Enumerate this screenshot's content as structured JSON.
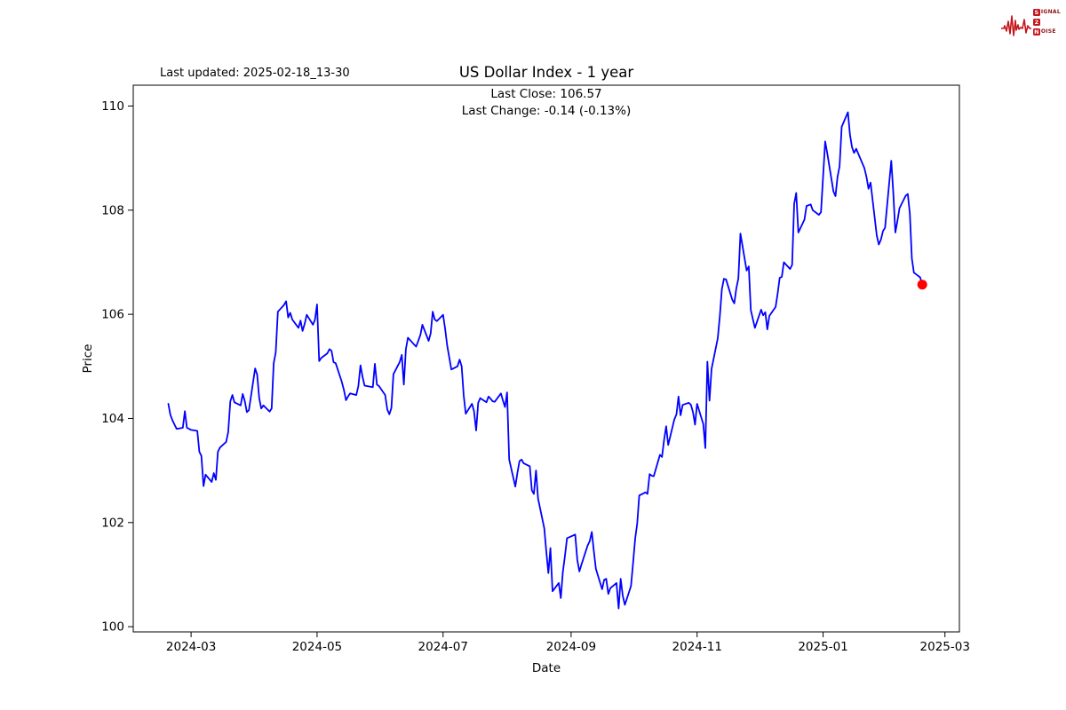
{
  "header": {
    "last_updated": "Last updated: 2025-02-18_13-30"
  },
  "logo": {
    "word1_initial": "S",
    "word1_rest": "IGNAL",
    "word2": "2",
    "word3_initial": "N",
    "word3_rest": "OISE",
    "accent_color": "#c4161c",
    "text_color": "#8c1216"
  },
  "chart_data": {
    "type": "line",
    "title": "US Dollar Index - 1 year",
    "xlabel": "Date",
    "ylabel": "Price",
    "annotations": [
      "Last Close: 106.57",
      "Last Change: -0.14 (-0.13%)"
    ],
    "last_close": 106.57,
    "last_change": -0.14,
    "last_change_pct": "-0.13%",
    "line_color": "#0000ff",
    "marker_color": "#ff0000",
    "axis_color": "#000000",
    "grid": false,
    "legend": "none",
    "ylim": [
      99.9,
      110.4
    ],
    "xlim": [
      "2024-02-02",
      "2025-03-08"
    ],
    "yticks": [
      100,
      102,
      104,
      106,
      108,
      110
    ],
    "xticks": [
      "2024-03",
      "2024-05",
      "2024-07",
      "2024-09",
      "2024-11",
      "2025-01",
      "2025-03"
    ],
    "series": [
      {
        "name": "US Dollar Index close",
        "points": [
          [
            "2024-02-19",
            104.28
          ],
          [
            "2024-02-20",
            104.07
          ],
          [
            "2024-02-21",
            103.96
          ],
          [
            "2024-02-22",
            103.88
          ],
          [
            "2024-02-23",
            103.8
          ],
          [
            "2024-02-26",
            103.82
          ],
          [
            "2024-02-27",
            104.14
          ],
          [
            "2024-02-28",
            103.82
          ],
          [
            "2024-02-29",
            103.8
          ],
          [
            "2024-03-01",
            103.78
          ],
          [
            "2024-03-04",
            103.76
          ],
          [
            "2024-03-05",
            103.36
          ],
          [
            "2024-03-06",
            103.28
          ],
          [
            "2024-03-07",
            102.7
          ],
          [
            "2024-03-08",
            102.92
          ],
          [
            "2024-03-11",
            102.78
          ],
          [
            "2024-03-12",
            102.95
          ],
          [
            "2024-03-13",
            102.82
          ],
          [
            "2024-03-14",
            103.36
          ],
          [
            "2024-03-15",
            103.44
          ],
          [
            "2024-03-18",
            103.55
          ],
          [
            "2024-03-19",
            103.74
          ],
          [
            "2024-03-20",
            104.33
          ],
          [
            "2024-03-21",
            104.45
          ],
          [
            "2024-03-22",
            104.31
          ],
          [
            "2024-03-25",
            104.25
          ],
          [
            "2024-03-26",
            104.47
          ],
          [
            "2024-03-27",
            104.33
          ],
          [
            "2024-03-28",
            104.12
          ],
          [
            "2024-03-29",
            104.16
          ],
          [
            "2024-04-01",
            104.96
          ],
          [
            "2024-04-02",
            104.84
          ],
          [
            "2024-04-03",
            104.39
          ],
          [
            "2024-04-04",
            104.19
          ],
          [
            "2024-04-05",
            104.25
          ],
          [
            "2024-04-08",
            104.13
          ],
          [
            "2024-04-09",
            104.19
          ],
          [
            "2024-04-10",
            105.06
          ],
          [
            "2024-04-11",
            105.27
          ],
          [
            "2024-04-12",
            106.05
          ],
          [
            "2024-04-15",
            106.18
          ],
          [
            "2024-04-16",
            106.25
          ],
          [
            "2024-04-17",
            105.94
          ],
          [
            "2024-04-18",
            106.03
          ],
          [
            "2024-04-19",
            105.9
          ],
          [
            "2024-04-22",
            105.74
          ],
          [
            "2024-04-23",
            105.88
          ],
          [
            "2024-04-24",
            105.68
          ],
          [
            "2024-04-25",
            105.82
          ],
          [
            "2024-04-26",
            105.99
          ],
          [
            "2024-04-29",
            105.8
          ],
          [
            "2024-04-30",
            105.9
          ],
          [
            "2024-05-01",
            106.19
          ],
          [
            "2024-05-02",
            105.1
          ],
          [
            "2024-05-03",
            105.16
          ],
          [
            "2024-05-06",
            105.25
          ],
          [
            "2024-05-07",
            105.33
          ],
          [
            "2024-05-08",
            105.3
          ],
          [
            "2024-05-09",
            105.08
          ],
          [
            "2024-05-10",
            105.06
          ],
          [
            "2024-05-13",
            104.7
          ],
          [
            "2024-05-14",
            104.55
          ],
          [
            "2024-05-15",
            104.35
          ],
          [
            "2024-05-16",
            104.42
          ],
          [
            "2024-05-17",
            104.48
          ],
          [
            "2024-05-20",
            104.45
          ],
          [
            "2024-05-21",
            104.62
          ],
          [
            "2024-05-22",
            105.02
          ],
          [
            "2024-05-23",
            104.8
          ],
          [
            "2024-05-24",
            104.63
          ],
          [
            "2024-05-28",
            104.6
          ],
          [
            "2024-05-29",
            105.05
          ],
          [
            "2024-05-30",
            104.65
          ],
          [
            "2024-05-31",
            104.62
          ],
          [
            "2024-06-03",
            104.45
          ],
          [
            "2024-06-04",
            104.17
          ],
          [
            "2024-06-05",
            104.08
          ],
          [
            "2024-06-06",
            104.2
          ],
          [
            "2024-06-07",
            104.85
          ],
          [
            "2024-06-10",
            105.08
          ],
          [
            "2024-06-11",
            105.22
          ],
          [
            "2024-06-12",
            104.65
          ],
          [
            "2024-06-13",
            105.33
          ],
          [
            "2024-06-14",
            105.55
          ],
          [
            "2024-06-17",
            105.42
          ],
          [
            "2024-06-18",
            105.38
          ],
          [
            "2024-06-20",
            105.6
          ],
          [
            "2024-06-21",
            105.8
          ],
          [
            "2024-06-24",
            105.49
          ],
          [
            "2024-06-25",
            105.63
          ],
          [
            "2024-06-26",
            106.05
          ],
          [
            "2024-06-27",
            105.9
          ],
          [
            "2024-06-28",
            105.87
          ],
          [
            "2024-07-01",
            105.99
          ],
          [
            "2024-07-02",
            105.72
          ],
          [
            "2024-07-03",
            105.4
          ],
          [
            "2024-07-05",
            104.94
          ],
          [
            "2024-07-08",
            105.0
          ],
          [
            "2024-07-09",
            105.13
          ],
          [
            "2024-07-10",
            105.0
          ],
          [
            "2024-07-11",
            104.44
          ],
          [
            "2024-07-12",
            104.09
          ],
          [
            "2024-07-15",
            104.28
          ],
          [
            "2024-07-16",
            104.14
          ],
          [
            "2024-07-17",
            103.77
          ],
          [
            "2024-07-18",
            104.3
          ],
          [
            "2024-07-19",
            104.39
          ],
          [
            "2024-07-22",
            104.31
          ],
          [
            "2024-07-23",
            104.42
          ],
          [
            "2024-07-24",
            104.38
          ],
          [
            "2024-07-25",
            104.33
          ],
          [
            "2024-07-26",
            104.32
          ],
          [
            "2024-07-29",
            104.48
          ],
          [
            "2024-07-30",
            104.34
          ],
          [
            "2024-07-31",
            104.22
          ],
          [
            "2024-08-01",
            104.5
          ],
          [
            "2024-08-02",
            103.21
          ],
          [
            "2024-08-05",
            102.69
          ],
          [
            "2024-08-06",
            102.96
          ],
          [
            "2024-08-07",
            103.18
          ],
          [
            "2024-08-08",
            103.21
          ],
          [
            "2024-08-09",
            103.14
          ],
          [
            "2024-08-12",
            103.08
          ],
          [
            "2024-08-13",
            102.62
          ],
          [
            "2024-08-14",
            102.55
          ],
          [
            "2024-08-15",
            103.0
          ],
          [
            "2024-08-16",
            102.46
          ],
          [
            "2024-08-19",
            101.89
          ],
          [
            "2024-08-20",
            101.44
          ],
          [
            "2024-08-21",
            101.03
          ],
          [
            "2024-08-22",
            101.51
          ],
          [
            "2024-08-23",
            100.68
          ],
          [
            "2024-08-26",
            100.84
          ],
          [
            "2024-08-27",
            100.55
          ],
          [
            "2024-08-28",
            101.05
          ],
          [
            "2024-08-29",
            101.35
          ],
          [
            "2024-08-30",
            101.7
          ],
          [
            "2024-09-03",
            101.77
          ],
          [
            "2024-09-04",
            101.28
          ],
          [
            "2024-09-05",
            101.06
          ],
          [
            "2024-09-06",
            101.19
          ],
          [
            "2024-09-09",
            101.56
          ],
          [
            "2024-09-10",
            101.64
          ],
          [
            "2024-09-11",
            101.82
          ],
          [
            "2024-09-12",
            101.45
          ],
          [
            "2024-09-13",
            101.11
          ],
          [
            "2024-09-16",
            100.72
          ],
          [
            "2024-09-17",
            100.9
          ],
          [
            "2024-09-18",
            100.92
          ],
          [
            "2024-09-19",
            100.63
          ],
          [
            "2024-09-20",
            100.74
          ],
          [
            "2024-09-23",
            100.84
          ],
          [
            "2024-09-24",
            100.35
          ],
          [
            "2024-09-25",
            100.92
          ],
          [
            "2024-09-26",
            100.6
          ],
          [
            "2024-09-27",
            100.42
          ],
          [
            "2024-09-30",
            100.78
          ],
          [
            "2024-10-01",
            101.21
          ],
          [
            "2024-10-02",
            101.69
          ],
          [
            "2024-10-03",
            101.98
          ],
          [
            "2024-10-04",
            102.52
          ],
          [
            "2024-10-07",
            102.58
          ],
          [
            "2024-10-08",
            102.55
          ],
          [
            "2024-10-09",
            102.93
          ],
          [
            "2024-10-10",
            102.9
          ],
          [
            "2024-10-11",
            102.89
          ],
          [
            "2024-10-14",
            103.3
          ],
          [
            "2024-10-15",
            103.26
          ],
          [
            "2024-10-16",
            103.58
          ],
          [
            "2024-10-17",
            103.85
          ],
          [
            "2024-10-18",
            103.49
          ],
          [
            "2024-10-21",
            103.98
          ],
          [
            "2024-10-22",
            104.08
          ],
          [
            "2024-10-23",
            104.42
          ],
          [
            "2024-10-24",
            104.06
          ],
          [
            "2024-10-25",
            104.26
          ],
          [
            "2024-10-28",
            104.3
          ],
          [
            "2024-10-29",
            104.26
          ],
          [
            "2024-10-30",
            104.12
          ],
          [
            "2024-10-31",
            103.88
          ],
          [
            "2024-11-01",
            104.28
          ],
          [
            "2024-11-04",
            103.89
          ],
          [
            "2024-11-05",
            103.43
          ],
          [
            "2024-11-06",
            105.09
          ],
          [
            "2024-11-07",
            104.34
          ],
          [
            "2024-11-08",
            104.95
          ],
          [
            "2024-11-11",
            105.54
          ],
          [
            "2024-11-12",
            105.96
          ],
          [
            "2024-11-13",
            106.48
          ],
          [
            "2024-11-14",
            106.68
          ],
          [
            "2024-11-15",
            106.67
          ],
          [
            "2024-11-18",
            106.28
          ],
          [
            "2024-11-19",
            106.21
          ],
          [
            "2024-11-20",
            106.5
          ],
          [
            "2024-11-21",
            106.69
          ],
          [
            "2024-11-22",
            107.55
          ],
          [
            "2024-11-25",
            106.84
          ],
          [
            "2024-11-26",
            106.92
          ],
          [
            "2024-11-27",
            106.08
          ],
          [
            "2024-11-29",
            105.74
          ],
          [
            "2024-12-02",
            106.09
          ],
          [
            "2024-12-03",
            105.98
          ],
          [
            "2024-12-04",
            106.04
          ],
          [
            "2024-12-05",
            105.71
          ],
          [
            "2024-12-06",
            105.97
          ],
          [
            "2024-12-09",
            106.14
          ],
          [
            "2024-12-10",
            106.4
          ],
          [
            "2024-12-11",
            106.7
          ],
          [
            "2024-12-12",
            106.72
          ],
          [
            "2024-12-13",
            107.0
          ],
          [
            "2024-12-16",
            106.87
          ],
          [
            "2024-12-17",
            106.95
          ],
          [
            "2024-12-18",
            108.12
          ],
          [
            "2024-12-19",
            108.33
          ],
          [
            "2024-12-20",
            107.57
          ],
          [
            "2024-12-23",
            107.82
          ],
          [
            "2024-12-24",
            108.08
          ],
          [
            "2024-12-26",
            108.11
          ],
          [
            "2024-12-27",
            108.0
          ],
          [
            "2024-12-30",
            107.91
          ],
          [
            "2024-12-31",
            107.96
          ],
          [
            "2025-01-02",
            109.32
          ],
          [
            "2025-01-03",
            109.1
          ],
          [
            "2025-01-06",
            108.36
          ],
          [
            "2025-01-07",
            108.27
          ],
          [
            "2025-01-08",
            108.64
          ],
          [
            "2025-01-09",
            108.84
          ],
          [
            "2025-01-10",
            109.6
          ],
          [
            "2025-01-13",
            109.88
          ],
          [
            "2025-01-14",
            109.45
          ],
          [
            "2025-01-15",
            109.21
          ],
          [
            "2025-01-16",
            109.1
          ],
          [
            "2025-01-17",
            109.18
          ],
          [
            "2025-01-21",
            108.81
          ],
          [
            "2025-01-22",
            108.64
          ],
          [
            "2025-01-23",
            108.41
          ],
          [
            "2025-01-24",
            108.53
          ],
          [
            "2025-01-27",
            107.51
          ],
          [
            "2025-01-28",
            107.34
          ],
          [
            "2025-01-29",
            107.43
          ],
          [
            "2025-01-30",
            107.6
          ],
          [
            "2025-01-31",
            107.66
          ],
          [
            "2025-02-03",
            108.95
          ],
          [
            "2025-02-04",
            108.33
          ],
          [
            "2025-02-05",
            107.57
          ],
          [
            "2025-02-06",
            107.8
          ],
          [
            "2025-02-07",
            108.04
          ],
          [
            "2025-02-10",
            108.28
          ],
          [
            "2025-02-11",
            108.31
          ],
          [
            "2025-02-12",
            107.94
          ],
          [
            "2025-02-13",
            107.07
          ],
          [
            "2025-02-14",
            106.8
          ],
          [
            "2025-02-17",
            106.71
          ],
          [
            "2025-02-18",
            106.57
          ]
        ]
      }
    ]
  }
}
